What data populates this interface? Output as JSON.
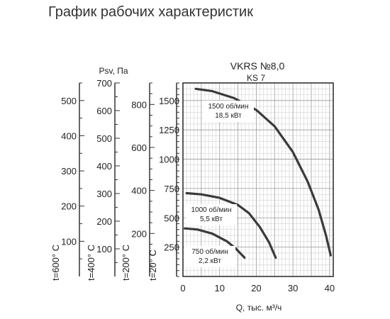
{
  "page": {
    "title": "График рабочих характеристик"
  },
  "chart_data": {
    "type": "line",
    "title": "VKRS №8,0",
    "subtitle": "KS 7",
    "xlabel": "Q, тыс. м³/ч",
    "ylabel": "Psv, Па",
    "xlim": [
      0,
      41
    ],
    "ylim": [
      0,
      1650
    ],
    "x_ticks": [
      0,
      10,
      20,
      30,
      40
    ],
    "y_ticks": [
      250,
      500,
      750,
      1000,
      1250,
      1500
    ],
    "grid": true,
    "series": [
      {
        "name": "1500 об/мин",
        "power": "18,5 кВт",
        "x": [
          3.5,
          8,
          14,
          20,
          25,
          30,
          34,
          37,
          39,
          40.3
        ],
        "y": [
          1600,
          1580,
          1520,
          1420,
          1280,
          1060,
          810,
          570,
          350,
          180
        ]
      },
      {
        "name": "1000 об/мин",
        "power": "5,5 кВт",
        "x": [
          1,
          5,
          10,
          15,
          18,
          21,
          23.5,
          25.3
        ],
        "y": [
          710,
          700,
          670,
          610,
          540,
          420,
          290,
          160
        ]
      },
      {
        "name": "750 об/мин",
        "power": "2,2 кВт",
        "x": [
          0.5,
          4,
          8,
          12,
          14.5,
          16.8
        ],
        "y": [
          410,
          400,
          365,
          300,
          235,
          160
        ]
      }
    ],
    "secondary_axes": [
      {
        "label": "t=600° C",
        "ticks": [
          100,
          200,
          300,
          400,
          500
        ],
        "top": 550
      },
      {
        "label": "t=400° C",
        "ticks": [
          100,
          200,
          300,
          400,
          500,
          600,
          700
        ],
        "top": 700
      },
      {
        "label": "t=200° C",
        "ticks": [
          200,
          400,
          600,
          800
        ],
        "top": 900
      },
      {
        "label": "t=20° C",
        "ticks": [],
        "top": 0
      }
    ]
  }
}
